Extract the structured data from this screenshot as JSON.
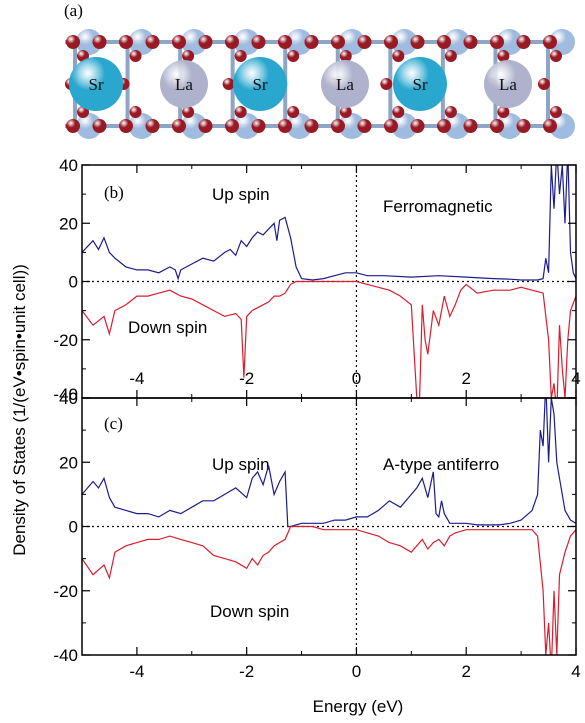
{
  "figure": {
    "ylabel": "Density of States (1/(eV•spin•unit cell))",
    "xlabel": "Energy (eV)"
  },
  "structure": {
    "label": "(a)",
    "atoms": [
      "Sr",
      "La",
      "Sr",
      "La",
      "Sr",
      "La"
    ],
    "colors": {
      "Sr": "#2aa7cf",
      "La": "#aeb2cc",
      "O": "#9a1a24",
      "small": "#9fbbe0"
    }
  },
  "colors": {
    "up": "#1c1c8c",
    "down": "#d81e2e",
    "axis": "#000000"
  },
  "chart_data": [
    {
      "type": "line",
      "panel_label": "(b)",
      "title": "Ferromagnetic",
      "annotations": [
        "Up spin",
        "Down spin"
      ],
      "xlim": [
        -5,
        4
      ],
      "ylim": [
        -40,
        40
      ],
      "xticks": [
        -4,
        -2,
        0,
        2,
        4
      ],
      "yticks": [
        40,
        20,
        0,
        -20,
        -40
      ],
      "grid": false,
      "reference_lines": {
        "y": 0,
        "x": 0,
        "style": "dotted"
      },
      "series": [
        {
          "role": "up",
          "x": [
            -5,
            -4.8,
            -4.7,
            -4.6,
            -4.5,
            -4.4,
            -4.2,
            -4,
            -3.8,
            -3.6,
            -3.4,
            -3.3,
            -3.25,
            -3.2,
            -3.0,
            -2.8,
            -2.6,
            -2.4,
            -2.3,
            -2.2,
            -2.1,
            -2.0,
            -1.9,
            -1.8,
            -1.7,
            -1.6,
            -1.5,
            -1.45,
            -1.4,
            -1.3,
            -1.2,
            -1.1,
            -1.0,
            -0.8,
            -0.6,
            -0.4,
            -0.2,
            0,
            0.2,
            0.5,
            1,
            1.5,
            2,
            2.5,
            2.8,
            3.0,
            3.2,
            3.3,
            3.4,
            3.45,
            3.5,
            3.55,
            3.6,
            3.65,
            3.7,
            3.75,
            3.8,
            3.85,
            3.9,
            3.95,
            4
          ],
          "y": [
            10,
            14,
            11,
            15,
            10,
            8,
            5,
            4,
            4,
            3,
            5,
            4,
            1,
            4,
            6,
            8,
            7,
            10,
            11,
            9,
            14,
            12,
            15,
            17,
            16,
            18,
            20,
            14,
            21,
            22,
            15,
            5,
            1,
            0.5,
            1,
            2,
            3,
            3,
            2,
            2,
            1.5,
            2,
            1.5,
            1,
            0.8,
            0.5,
            0.5,
            0.5,
            1,
            8,
            3,
            40,
            25,
            45,
            30,
            40,
            20,
            45,
            10,
            3,
            1
          ]
        },
        {
          "role": "down",
          "x": [
            -5,
            -4.8,
            -4.6,
            -4.5,
            -4.4,
            -4.2,
            -4,
            -3.8,
            -3.6,
            -3.4,
            -3.2,
            -3.0,
            -2.8,
            -2.6,
            -2.4,
            -2.2,
            -2.1,
            -2.05,
            -2.0,
            -1.9,
            -1.8,
            -1.7,
            -1.6,
            -1.5,
            -1.4,
            -1.3,
            -1.2,
            -1.1,
            -1.0,
            -0.8,
            -0.6,
            -0.4,
            -0.2,
            0,
            0.2,
            0.4,
            0.6,
            0.8,
            1.0,
            1.1,
            1.15,
            1.2,
            1.25,
            1.3,
            1.4,
            1.5,
            1.6,
            1.7,
            1.8,
            1.9,
            2.0,
            2.2,
            2.5,
            2.8,
            3.0,
            3.2,
            3.4,
            3.5,
            3.55,
            3.6,
            3.65,
            3.7,
            3.75,
            3.8,
            3.85,
            3.9,
            4
          ],
          "y": [
            -10,
            -15,
            -12,
            -18,
            -10,
            -8,
            -5,
            -5,
            -4,
            -3,
            -5,
            -6,
            -8,
            -10,
            -12,
            -11,
            -13,
            -33,
            -12,
            -10,
            -9,
            -8,
            -7,
            -5,
            -5,
            -4,
            -1,
            0,
            0,
            0,
            0,
            0,
            0,
            0,
            -1,
            -2,
            -3,
            -5,
            -8,
            -40,
            -40,
            -8,
            -20,
            -25,
            -10,
            -15,
            -5,
            -12,
            -8,
            -3,
            -1,
            -4,
            -3,
            -3,
            -2,
            -3,
            -4,
            -20,
            -40,
            -35,
            -45,
            -15,
            -30,
            -40,
            -20,
            -10,
            -5
          ]
        }
      ]
    },
    {
      "type": "line",
      "panel_label": "(c)",
      "title": "A-type antiferro",
      "annotations": [
        "Up spin",
        "Down spin"
      ],
      "xlim": [
        -5,
        4
      ],
      "ylim": [
        -40,
        40
      ],
      "xticks": [
        -4,
        -2,
        0,
        2,
        4
      ],
      "yticks": [
        40,
        20,
        0,
        -20,
        -40
      ],
      "grid": false,
      "reference_lines": {
        "y": 0,
        "x": 0,
        "style": "dotted"
      },
      "series": [
        {
          "role": "up",
          "x": [
            -5,
            -4.8,
            -4.7,
            -4.6,
            -4.5,
            -4.4,
            -4.2,
            -4,
            -3.8,
            -3.6,
            -3.4,
            -3.2,
            -3.0,
            -2.8,
            -2.6,
            -2.4,
            -2.2,
            -2.0,
            -1.9,
            -1.8,
            -1.7,
            -1.6,
            -1.5,
            -1.4,
            -1.3,
            -1.25,
            -1.2,
            -1.0,
            -0.8,
            -0.6,
            -0.4,
            -0.2,
            0,
            0.2,
            0.4,
            0.6,
            0.8,
            1.0,
            1.1,
            1.2,
            1.3,
            1.4,
            1.45,
            1.5,
            1.55,
            1.6,
            1.7,
            1.8,
            2.0,
            2.2,
            2.4,
            2.6,
            2.8,
            3.0,
            3.2,
            3.3,
            3.35,
            3.4,
            3.45,
            3.5,
            3.55,
            3.6,
            3.65,
            3.7,
            3.8,
            3.9,
            4
          ],
          "y": [
            10,
            14,
            12,
            15,
            9,
            6,
            5,
            4,
            4,
            3,
            5,
            4,
            6,
            8,
            8,
            10,
            12,
            9,
            15,
            17,
            13,
            19,
            10,
            14,
            17,
            0,
            0,
            1,
            1,
            1,
            2,
            2,
            3,
            3,
            5,
            8,
            6,
            10,
            12,
            15,
            9,
            17,
            4,
            3,
            8,
            4,
            1,
            1,
            1,
            0.5,
            0.5,
            0.5,
            1,
            2,
            5,
            10,
            30,
            25,
            45,
            20,
            40,
            35,
            20,
            15,
            5,
            2,
            1
          ]
        },
        {
          "role": "down",
          "x": [
            -5,
            -4.8,
            -4.6,
            -4.5,
            -4.4,
            -4.2,
            -4,
            -3.8,
            -3.6,
            -3.4,
            -3.2,
            -3.0,
            -2.8,
            -2.6,
            -2.4,
            -2.2,
            -2.0,
            -1.9,
            -1.8,
            -1.7,
            -1.6,
            -1.5,
            -1.4,
            -1.3,
            -1.2,
            -1.0,
            -0.8,
            -0.6,
            -0.4,
            -0.2,
            0,
            0.2,
            0.4,
            0.6,
            0.8,
            1.0,
            1.1,
            1.2,
            1.3,
            1.4,
            1.5,
            1.6,
            1.7,
            1.8,
            2.0,
            2.2,
            2.5,
            2.8,
            3.0,
            3.2,
            3.3,
            3.4,
            3.45,
            3.5,
            3.55,
            3.6,
            3.65,
            3.7,
            3.8,
            3.9,
            4
          ],
          "y": [
            -10,
            -15,
            -12,
            -16,
            -8,
            -6,
            -5,
            -4,
            -4,
            -3,
            -4,
            -5,
            -6,
            -9,
            -10,
            -11,
            -13,
            -10,
            -12,
            -9,
            -8,
            -6,
            -5,
            -4,
            0,
            0,
            0,
            -1,
            -1,
            -1,
            -1,
            -2,
            -3,
            -5,
            -6,
            -8,
            -6,
            -4,
            -7,
            -5,
            -4,
            -6,
            -3,
            -2,
            -1,
            -1,
            -1,
            -1,
            -1,
            -1,
            -3,
            -20,
            -40,
            -30,
            -45,
            -20,
            -40,
            -15,
            -8,
            -3,
            -1
          ]
        }
      ]
    }
  ]
}
